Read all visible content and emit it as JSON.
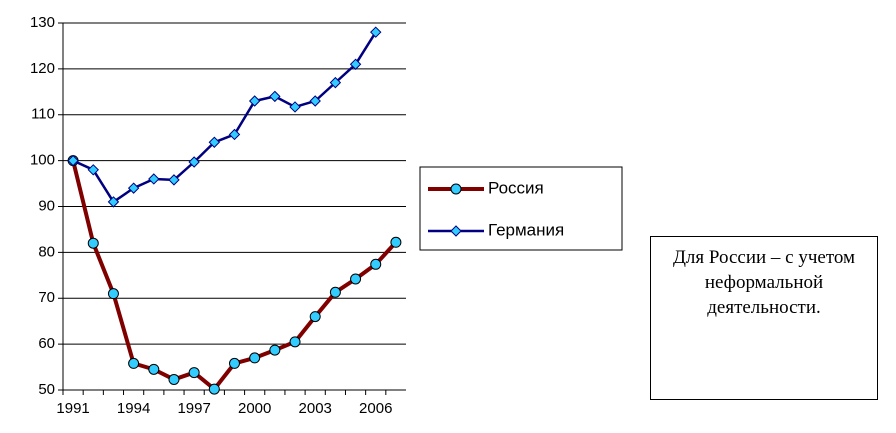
{
  "chart_data": {
    "type": "line",
    "categories": [
      "1991",
      null,
      null,
      "1994",
      null,
      null,
      "1997",
      null,
      null,
      "2000",
      null,
      null,
      "2003",
      null,
      null,
      "2006",
      null
    ],
    "series": [
      {
        "name": "Россия",
        "color": "#800000",
        "marker_color": "#33ccff",
        "marker": "circle",
        "values": [
          100,
          82,
          71,
          55.8,
          54.5,
          52.3,
          53.8,
          50.2,
          55.8,
          57,
          58.7,
          60.5,
          66,
          71.3,
          74.2,
          77.4,
          82.2
        ]
      },
      {
        "name": "Германия",
        "color": "#000080",
        "marker_color": "#33ccff",
        "marker": "diamond",
        "values": [
          100,
          98,
          91,
          94,
          96,
          95.8,
          99.7,
          104,
          105.7,
          113,
          114,
          111.7,
          113,
          117,
          121,
          128,
          null
        ]
      }
    ],
    "ylim": [
      50,
      130
    ],
    "yticks": [
      50,
      60,
      70,
      80,
      90,
      100,
      110,
      120,
      130
    ],
    "grid": true,
    "legend": "right",
    "annotation": "Для России – с учетом неформальной деятельности."
  }
}
